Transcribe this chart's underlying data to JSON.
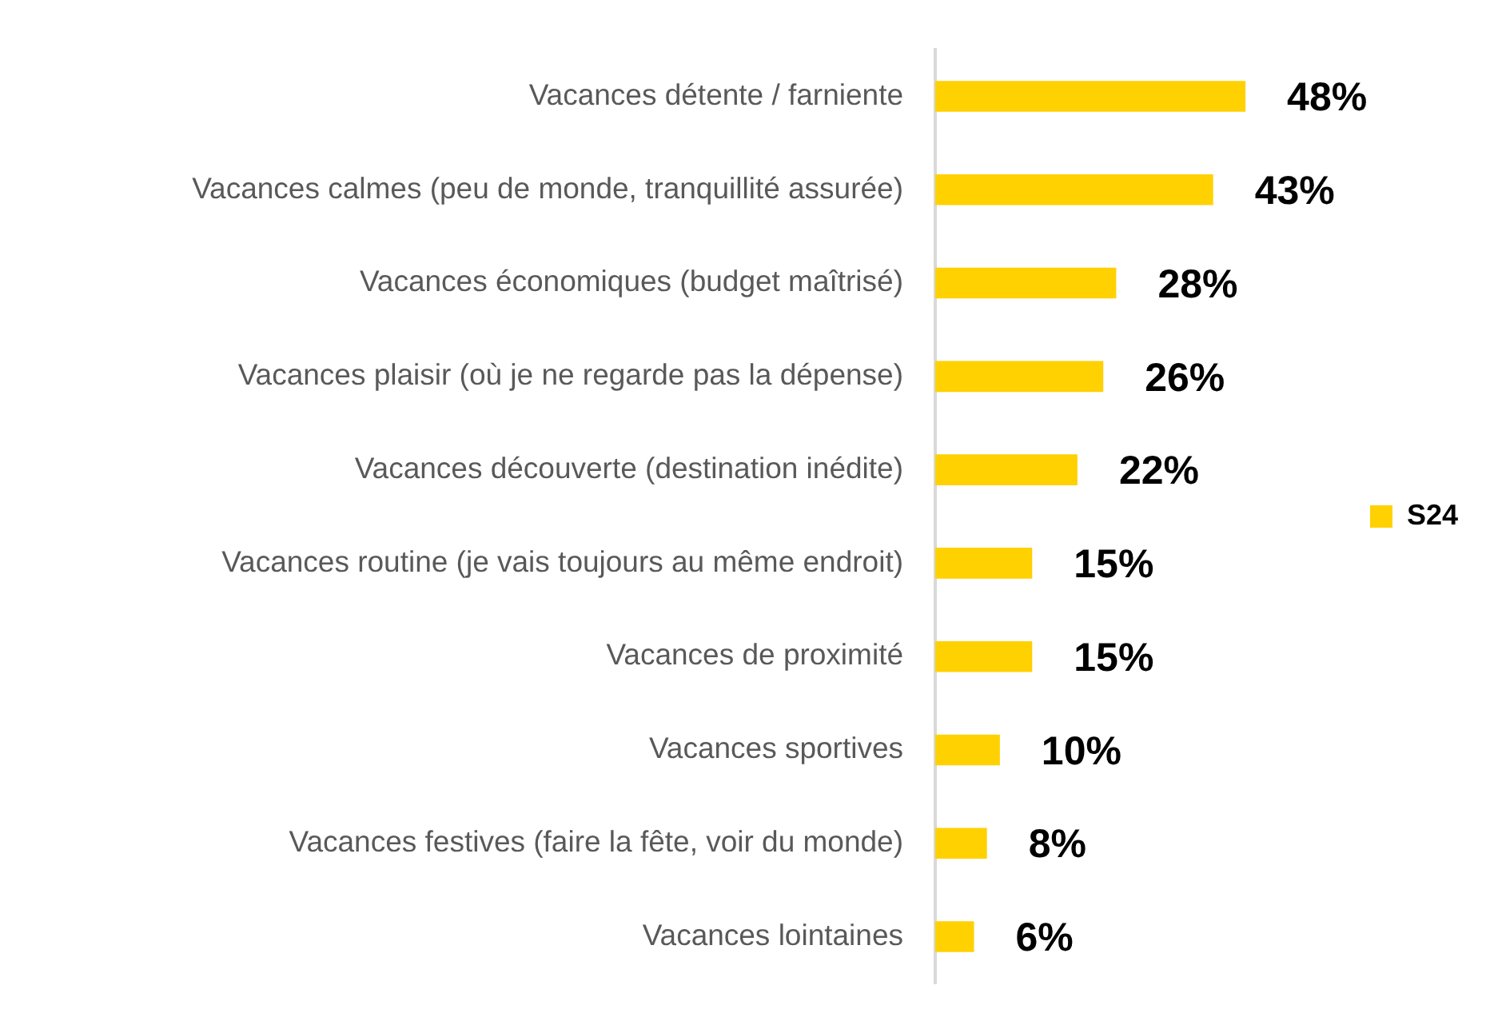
{
  "chart_data": {
    "type": "bar",
    "orientation": "horizontal",
    "categories": [
      "Vacances détente / farniente",
      "Vacances calmes (peu de monde, tranquillité assurée)",
      "Vacances économiques (budget maîtrisé)",
      "Vacances plaisir (où je ne regarde pas la dépense)",
      "Vacances découverte (destination inédite)",
      "Vacances routine (je vais toujours au même endroit)",
      "Vacances de proximité",
      "Vacances sportives",
      "Vacances festives (faire la fête, voir du monde)",
      "Vacances lointaines"
    ],
    "series": [
      {
        "name": "S24",
        "color": "#ffd100",
        "values": [
          48,
          43,
          28,
          26,
          22,
          15,
          15,
          10,
          8,
          6
        ],
        "value_labels": [
          "48%",
          "43%",
          "28%",
          "26%",
          "22%",
          "15%",
          "15%",
          "10%",
          "8%",
          "6%"
        ]
      }
    ],
    "legend": "right",
    "tick_labels": "y"
  }
}
